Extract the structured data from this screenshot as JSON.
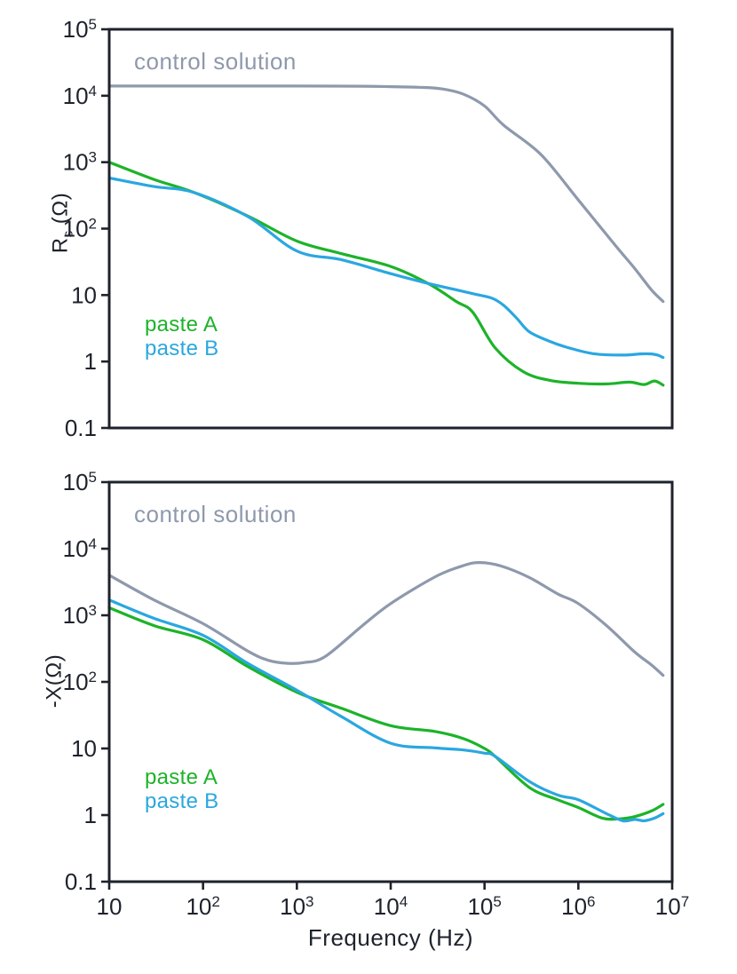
{
  "figure": {
    "background": "#ffffff",
    "axis_color": "#1e222c",
    "text_color": "#1e222c"
  },
  "chart_data": [
    {
      "type": "line",
      "title": "",
      "xlabel": "",
      "ylabel": {
        "base": "R",
        "sub": "s",
        "rest": " (Ω)"
      },
      "x_scale": "log",
      "y_scale": "log",
      "xlim": [
        10,
        10000000
      ],
      "ylim": [
        0.1,
        100000
      ],
      "grid": false,
      "annotation": {
        "text": "control solution",
        "color": "#8e99ac"
      },
      "legend": {
        "position": "lower left",
        "entries": [
          {
            "label": "paste A",
            "color": "#1db32a"
          },
          {
            "label": "paste B",
            "color": "#2aa7e0"
          }
        ]
      },
      "x_ticks": [],
      "y_ticks": [
        {
          "value": 100000,
          "label": "10^5"
        },
        {
          "value": 10000,
          "label": "10^4"
        },
        {
          "value": 1000,
          "label": "10^3"
        },
        {
          "value": 100,
          "label": "10^2"
        },
        {
          "value": 10,
          "label": "10"
        },
        {
          "value": 1,
          "label": "1"
        },
        {
          "value": 0.1,
          "label": "0.1"
        }
      ],
      "series": [
        {
          "name": "control solution",
          "color": "#8e99ac",
          "x": [
            10,
            100,
            1000,
            5000,
            10000,
            20000,
            35000,
            60000,
            100000,
            160000,
            400000,
            1000000,
            2500000,
            4000000,
            6000000,
            8000000
          ],
          "y": [
            14000,
            14000,
            14000,
            13900,
            13700,
            13400,
            12700,
            10500,
            7000,
            3600,
            1300,
            270,
            55,
            25,
            12,
            8
          ]
        },
        {
          "name": "paste A",
          "color": "#1db32a",
          "x": [
            10,
            30,
            80,
            300,
            1000,
            3000,
            10000,
            25000,
            50000,
            75000,
            130000,
            260000,
            500000,
            1000000,
            2000000,
            3500000,
            5000000,
            6500000,
            8000000
          ],
          "y": [
            1000,
            550,
            350,
            155,
            65,
            42,
            27,
            15,
            8,
            5.5,
            1.6,
            0.7,
            0.52,
            0.47,
            0.46,
            0.49,
            0.45,
            0.51,
            0.44
          ]
        },
        {
          "name": "paste B",
          "color": "#2aa7e0",
          "x": [
            10,
            30,
            80,
            300,
            1000,
            3000,
            10000,
            25000,
            50000,
            80000,
            120000,
            160000,
            220000,
            300000,
            500000,
            800000,
            1500000,
            3000000,
            4500000,
            6000000,
            7000000,
            8000000
          ],
          "y": [
            580,
            430,
            350,
            152,
            46,
            34,
            21,
            15,
            12,
            10.3,
            9,
            7,
            4.5,
            2.8,
            2.0,
            1.6,
            1.3,
            1.25,
            1.3,
            1.3,
            1.25,
            1.15
          ]
        }
      ]
    },
    {
      "type": "line",
      "title": "",
      "xlabel": "Frequency (Hz)",
      "ylabel": {
        "base": "-X(Ω)",
        "sub": "",
        "rest": ""
      },
      "x_scale": "log",
      "y_scale": "log",
      "xlim": [
        10,
        10000000
      ],
      "ylim": [
        0.1,
        100000
      ],
      "grid": false,
      "annotation": {
        "text": "control solution",
        "color": "#8e99ac"
      },
      "legend": {
        "position": "lower left",
        "entries": [
          {
            "label": "paste A",
            "color": "#1db32a"
          },
          {
            "label": "paste B",
            "color": "#2aa7e0"
          }
        ]
      },
      "x_ticks": [
        {
          "value": 10,
          "label": "10"
        },
        {
          "value": 100,
          "label": "10^2"
        },
        {
          "value": 1000,
          "label": "10^3"
        },
        {
          "value": 10000,
          "label": "10^4"
        },
        {
          "value": 100000,
          "label": "10^5"
        },
        {
          "value": 1000000,
          "label": "10^6"
        },
        {
          "value": 10000000,
          "label": "10^7"
        }
      ],
      "y_ticks": [
        {
          "value": 100000,
          "label": "10^5"
        },
        {
          "value": 10000,
          "label": "10^4"
        },
        {
          "value": 1000,
          "label": "10^3"
        },
        {
          "value": 100,
          "label": "10^2"
        },
        {
          "value": 10,
          "label": "10"
        },
        {
          "value": 1,
          "label": "1"
        },
        {
          "value": 0.1,
          "label": "0.1"
        }
      ],
      "series": [
        {
          "name": "control solution",
          "color": "#8e99ac",
          "x": [
            10,
            30,
            100,
            300,
            500,
            800,
            1200,
            2000,
            5000,
            10000,
            30000,
            60000,
            90000,
            150000,
            300000,
            600000,
            1000000,
            2000000,
            4000000,
            6000000,
            8000000
          ],
          "y": [
            4000,
            1700,
            750,
            290,
            210,
            190,
            195,
            240,
            700,
            1500,
            3800,
            5600,
            6200,
            5500,
            3700,
            2100,
            1500,
            700,
            280,
            180,
            125
          ]
        },
        {
          "name": "paste A",
          "color": "#1db32a",
          "x": [
            10,
            30,
            100,
            300,
            1000,
            3000,
            10000,
            30000,
            60000,
            100000,
            130000,
            300000,
            600000,
            1000000,
            1800000,
            2800000,
            4000000,
            6000000,
            8000000
          ],
          "y": [
            1300,
            700,
            430,
            170,
            70,
            40,
            22,
            18,
            14,
            10,
            7.6,
            2.6,
            1.7,
            1.3,
            0.9,
            0.88,
            0.95,
            1.15,
            1.45
          ]
        },
        {
          "name": "paste B",
          "color": "#2aa7e0",
          "x": [
            10,
            30,
            100,
            300,
            1000,
            3000,
            10000,
            30000,
            60000,
            100000,
            130000,
            300000,
            600000,
            1000000,
            2000000,
            3000000,
            4000000,
            5000000,
            6500000,
            8000000
          ],
          "y": [
            1700,
            900,
            500,
            190,
            75,
            30,
            12,
            10.2,
            9.5,
            8.5,
            7.6,
            3.2,
            2.0,
            1.7,
            1.05,
            0.82,
            0.86,
            0.82,
            0.9,
            1.05
          ]
        }
      ]
    }
  ]
}
